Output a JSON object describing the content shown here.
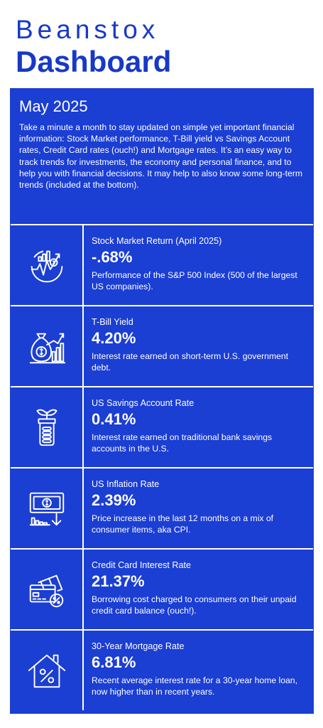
{
  "header": {
    "brand": "Beanstox",
    "title": "Dashboard"
  },
  "intro": {
    "date": "May 2025",
    "description": "Take a minute a month to stay updated on simple yet important financial information: Stock Market performance, T-Bill yield vs Savings Account rates, Credit Card rates (ouch!) and Mortgage rates. It’s an easy way to track trends for investments, the economy and personal finance, and to help you with financial decisions. It may help to also know some long-term trends (included at the bottom)."
  },
  "metrics": [
    {
      "icon": "stock-chart-icon",
      "label": "Stock Market Return (April 2025)",
      "value": "-.68%",
      "description": "Performance of the S&P 500 Index (500 of the largest US companies)."
    },
    {
      "icon": "money-bag-growth-icon",
      "label": "T-Bill Yield",
      "value": "4.20%",
      "description": "Interest rate earned on short-term U.S. government debt."
    },
    {
      "icon": "coin-jar-plant-icon",
      "label": "US Savings Account Rate",
      "value": "0.41%",
      "description": "Interest rate earned on traditional bank savings accounts in the U.S."
    },
    {
      "icon": "inflation-chart-icon",
      "label": "US Inflation Rate",
      "value": "2.39%",
      "description": "Price increase in the last 12 months on a mix of consumer items, aka CPI."
    },
    {
      "icon": "credit-card-percent-icon",
      "label": "Credit Card Interest Rate",
      "value": "21.37%",
      "description": "Borrowing cost charged to consumers on their unpaid credit card balance (ouch!)."
    },
    {
      "icon": "house-percent-icon",
      "label": "30-Year Mortgage Rate",
      "value": "6.81%",
      "description": "Recent average interest rate for a 30-year home loan, now higher than in recent years."
    }
  ],
  "colors": {
    "brand_blue": "#1739c7",
    "panel_blue": "#1b3ed3",
    "text_white": "#ffffff"
  }
}
